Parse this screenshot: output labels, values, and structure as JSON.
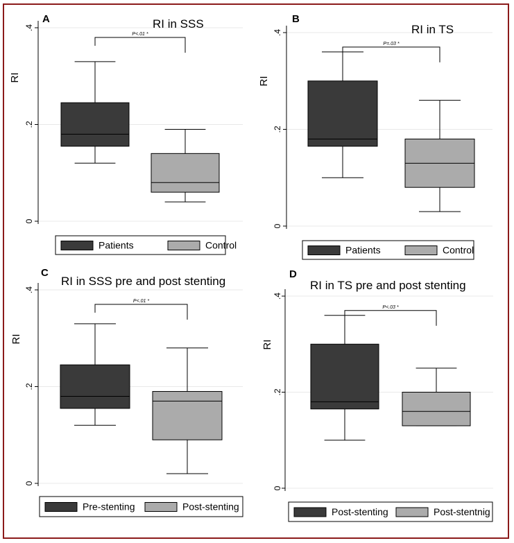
{
  "figure": {
    "accent_frame_color": "#8b1a1a"
  },
  "colors": {
    "dark_box": "#3a3a3a",
    "light_box": "#ababab",
    "gridline": "#e8e8e8",
    "line": "#000000"
  },
  "chart_data": [
    {
      "type": "box",
      "panel": "A",
      "title": "RI in SSS",
      "ylabel": "RI",
      "ylim": [
        0,
        0.4
      ],
      "yticks": [
        {
          "value": 0,
          "label": "0"
        },
        {
          "value": 0.2,
          "label": ".2"
        },
        {
          "value": 0.4,
          "label": ".4"
        }
      ],
      "grid": true,
      "legend_position": "bottom",
      "series": [
        {
          "name": "Patients",
          "color": "dark",
          "min": 0.12,
          "q1": 0.155,
          "median": 0.18,
          "q3": 0.245,
          "max": 0.33
        },
        {
          "name": "Control",
          "color": "light",
          "min": 0.04,
          "q1": 0.06,
          "median": 0.08,
          "q3": 0.14,
          "max": 0.19
        }
      ],
      "annotation": {
        "text": "P<.01 *",
        "from": 0,
        "to": 1,
        "y": 0.38
      }
    },
    {
      "type": "box",
      "panel": "B",
      "title": "RI in TS",
      "ylabel": "RI",
      "ylim": [
        0,
        0.4
      ],
      "yticks": [
        {
          "value": 0,
          "label": "0"
        },
        {
          "value": 0.2,
          "label": ".2"
        },
        {
          "value": 0.4,
          "label": ".4"
        }
      ],
      "grid": true,
      "legend_position": "bottom",
      "series": [
        {
          "name": "Patients",
          "color": "dark",
          "min": 0.1,
          "q1": 0.165,
          "median": 0.18,
          "q3": 0.3,
          "max": 0.36
        },
        {
          "name": "Control",
          "color": "light",
          "min": 0.03,
          "q1": 0.08,
          "median": 0.13,
          "q3": 0.18,
          "max": 0.26
        }
      ],
      "annotation": {
        "text": "P=.03 *",
        "from": 0,
        "to": 1,
        "y": 0.37
      }
    },
    {
      "type": "box",
      "panel": "C",
      "title": "RI in SSS pre and post stenting",
      "ylabel": "RI",
      "ylim": [
        0,
        0.4
      ],
      "yticks": [
        {
          "value": 0,
          "label": "0"
        },
        {
          "value": 0.2,
          "label": ".2"
        },
        {
          "value": 0.4,
          "label": ".4"
        }
      ],
      "grid": true,
      "legend_position": "bottom",
      "series": [
        {
          "name": "Pre-stenting",
          "color": "dark",
          "min": 0.12,
          "q1": 0.155,
          "median": 0.18,
          "q3": 0.245,
          "max": 0.33
        },
        {
          "name": "Post-stenting",
          "color": "light",
          "min": 0.02,
          "q1": 0.09,
          "median": 0.17,
          "q3": 0.19,
          "max": 0.28
        }
      ],
      "annotation": {
        "text": "P<.01 *",
        "from": 0,
        "to": 1,
        "y": 0.37
      }
    },
    {
      "type": "box",
      "panel": "D",
      "title": "RI in TS pre and post stenting",
      "ylabel": "RI",
      "ylim": [
        0,
        0.4
      ],
      "yticks": [
        {
          "value": 0,
          "label": "0"
        },
        {
          "value": 0.2,
          "label": ".2"
        },
        {
          "value": 0.4,
          "label": ".4"
        }
      ],
      "grid": true,
      "legend_position": "bottom",
      "series": [
        {
          "name": "Post-stenting",
          "color": "dark",
          "min": 0.1,
          "q1": 0.165,
          "median": 0.18,
          "q3": 0.3,
          "max": 0.36
        },
        {
          "name": "Post-stentnig",
          "color": "light",
          "min": 0.13,
          "q1": 0.13,
          "median": 0.16,
          "q3": 0.2,
          "max": 0.25
        }
      ],
      "annotation": {
        "text": "P<.03 *",
        "from": 0,
        "to": 1,
        "y": 0.37
      }
    }
  ]
}
